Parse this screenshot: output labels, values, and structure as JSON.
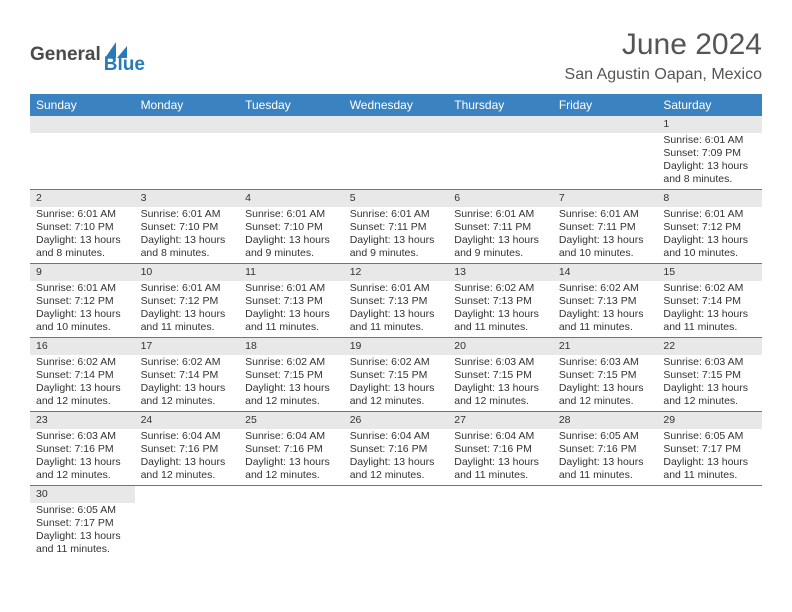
{
  "logo": {
    "general": "General",
    "blue": "Blue"
  },
  "title": "June 2024",
  "location": "San Agustin Oapan, Mexico",
  "colors": {
    "header_bg": "#3b83c0",
    "header_text": "#ffffff",
    "daynum_bg": "#e8e8e8",
    "border": "#3b83c0",
    "text": "#333333",
    "title_text": "#555555",
    "logo_gray": "#4a4a4a",
    "logo_blue": "#2a7ab8"
  },
  "weekdays": [
    "Sunday",
    "Monday",
    "Tuesday",
    "Wednesday",
    "Thursday",
    "Friday",
    "Saturday"
  ],
  "weeks": [
    [
      null,
      null,
      null,
      null,
      null,
      null,
      {
        "day": "1",
        "sunrise": "Sunrise: 6:01 AM",
        "sunset": "Sunset: 7:09 PM",
        "daylight1": "Daylight: 13 hours",
        "daylight2": "and 8 minutes."
      }
    ],
    [
      {
        "day": "2",
        "sunrise": "Sunrise: 6:01 AM",
        "sunset": "Sunset: 7:10 PM",
        "daylight1": "Daylight: 13 hours",
        "daylight2": "and 8 minutes."
      },
      {
        "day": "3",
        "sunrise": "Sunrise: 6:01 AM",
        "sunset": "Sunset: 7:10 PM",
        "daylight1": "Daylight: 13 hours",
        "daylight2": "and 8 minutes."
      },
      {
        "day": "4",
        "sunrise": "Sunrise: 6:01 AM",
        "sunset": "Sunset: 7:10 PM",
        "daylight1": "Daylight: 13 hours",
        "daylight2": "and 9 minutes."
      },
      {
        "day": "5",
        "sunrise": "Sunrise: 6:01 AM",
        "sunset": "Sunset: 7:11 PM",
        "daylight1": "Daylight: 13 hours",
        "daylight2": "and 9 minutes."
      },
      {
        "day": "6",
        "sunrise": "Sunrise: 6:01 AM",
        "sunset": "Sunset: 7:11 PM",
        "daylight1": "Daylight: 13 hours",
        "daylight2": "and 9 minutes."
      },
      {
        "day": "7",
        "sunrise": "Sunrise: 6:01 AM",
        "sunset": "Sunset: 7:11 PM",
        "daylight1": "Daylight: 13 hours",
        "daylight2": "and 10 minutes."
      },
      {
        "day": "8",
        "sunrise": "Sunrise: 6:01 AM",
        "sunset": "Sunset: 7:12 PM",
        "daylight1": "Daylight: 13 hours",
        "daylight2": "and 10 minutes."
      }
    ],
    [
      {
        "day": "9",
        "sunrise": "Sunrise: 6:01 AM",
        "sunset": "Sunset: 7:12 PM",
        "daylight1": "Daylight: 13 hours",
        "daylight2": "and 10 minutes."
      },
      {
        "day": "10",
        "sunrise": "Sunrise: 6:01 AM",
        "sunset": "Sunset: 7:12 PM",
        "daylight1": "Daylight: 13 hours",
        "daylight2": "and 11 minutes."
      },
      {
        "day": "11",
        "sunrise": "Sunrise: 6:01 AM",
        "sunset": "Sunset: 7:13 PM",
        "daylight1": "Daylight: 13 hours",
        "daylight2": "and 11 minutes."
      },
      {
        "day": "12",
        "sunrise": "Sunrise: 6:01 AM",
        "sunset": "Sunset: 7:13 PM",
        "daylight1": "Daylight: 13 hours",
        "daylight2": "and 11 minutes."
      },
      {
        "day": "13",
        "sunrise": "Sunrise: 6:02 AM",
        "sunset": "Sunset: 7:13 PM",
        "daylight1": "Daylight: 13 hours",
        "daylight2": "and 11 minutes."
      },
      {
        "day": "14",
        "sunrise": "Sunrise: 6:02 AM",
        "sunset": "Sunset: 7:13 PM",
        "daylight1": "Daylight: 13 hours",
        "daylight2": "and 11 minutes."
      },
      {
        "day": "15",
        "sunrise": "Sunrise: 6:02 AM",
        "sunset": "Sunset: 7:14 PM",
        "daylight1": "Daylight: 13 hours",
        "daylight2": "and 11 minutes."
      }
    ],
    [
      {
        "day": "16",
        "sunrise": "Sunrise: 6:02 AM",
        "sunset": "Sunset: 7:14 PM",
        "daylight1": "Daylight: 13 hours",
        "daylight2": "and 12 minutes."
      },
      {
        "day": "17",
        "sunrise": "Sunrise: 6:02 AM",
        "sunset": "Sunset: 7:14 PM",
        "daylight1": "Daylight: 13 hours",
        "daylight2": "and 12 minutes."
      },
      {
        "day": "18",
        "sunrise": "Sunrise: 6:02 AM",
        "sunset": "Sunset: 7:15 PM",
        "daylight1": "Daylight: 13 hours",
        "daylight2": "and 12 minutes."
      },
      {
        "day": "19",
        "sunrise": "Sunrise: 6:02 AM",
        "sunset": "Sunset: 7:15 PM",
        "daylight1": "Daylight: 13 hours",
        "daylight2": "and 12 minutes."
      },
      {
        "day": "20",
        "sunrise": "Sunrise: 6:03 AM",
        "sunset": "Sunset: 7:15 PM",
        "daylight1": "Daylight: 13 hours",
        "daylight2": "and 12 minutes."
      },
      {
        "day": "21",
        "sunrise": "Sunrise: 6:03 AM",
        "sunset": "Sunset: 7:15 PM",
        "daylight1": "Daylight: 13 hours",
        "daylight2": "and 12 minutes."
      },
      {
        "day": "22",
        "sunrise": "Sunrise: 6:03 AM",
        "sunset": "Sunset: 7:15 PM",
        "daylight1": "Daylight: 13 hours",
        "daylight2": "and 12 minutes."
      }
    ],
    [
      {
        "day": "23",
        "sunrise": "Sunrise: 6:03 AM",
        "sunset": "Sunset: 7:16 PM",
        "daylight1": "Daylight: 13 hours",
        "daylight2": "and 12 minutes."
      },
      {
        "day": "24",
        "sunrise": "Sunrise: 6:04 AM",
        "sunset": "Sunset: 7:16 PM",
        "daylight1": "Daylight: 13 hours",
        "daylight2": "and 12 minutes."
      },
      {
        "day": "25",
        "sunrise": "Sunrise: 6:04 AM",
        "sunset": "Sunset: 7:16 PM",
        "daylight1": "Daylight: 13 hours",
        "daylight2": "and 12 minutes."
      },
      {
        "day": "26",
        "sunrise": "Sunrise: 6:04 AM",
        "sunset": "Sunset: 7:16 PM",
        "daylight1": "Daylight: 13 hours",
        "daylight2": "and 12 minutes."
      },
      {
        "day": "27",
        "sunrise": "Sunrise: 6:04 AM",
        "sunset": "Sunset: 7:16 PM",
        "daylight1": "Daylight: 13 hours",
        "daylight2": "and 11 minutes."
      },
      {
        "day": "28",
        "sunrise": "Sunrise: 6:05 AM",
        "sunset": "Sunset: 7:16 PM",
        "daylight1": "Daylight: 13 hours",
        "daylight2": "and 11 minutes."
      },
      {
        "day": "29",
        "sunrise": "Sunrise: 6:05 AM",
        "sunset": "Sunset: 7:17 PM",
        "daylight1": "Daylight: 13 hours",
        "daylight2": "and 11 minutes."
      }
    ],
    [
      {
        "day": "30",
        "sunrise": "Sunrise: 6:05 AM",
        "sunset": "Sunset: 7:17 PM",
        "daylight1": "Daylight: 13 hours",
        "daylight2": "and 11 minutes."
      },
      null,
      null,
      null,
      null,
      null,
      null
    ]
  ]
}
